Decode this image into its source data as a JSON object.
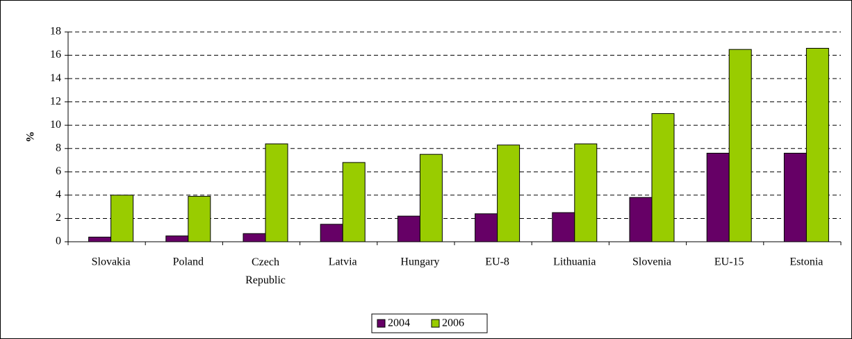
{
  "chart_data": {
    "type": "bar",
    "y_label": "%",
    "categories": [
      "Slovakia",
      "Poland",
      "Czech Republic",
      "Latvia",
      "Hungary",
      "EU-8",
      "Lithuania",
      "Slovenia",
      "EU-15",
      "Estonia"
    ],
    "series": [
      {
        "name": "2004",
        "color": "#660066",
        "values": [
          0.4,
          0.5,
          0.7,
          1.5,
          2.2,
          2.4,
          2.5,
          3.8,
          7.6,
          7.6
        ]
      },
      {
        "name": "2006",
        "color": "#99cc00",
        "values": [
          4.0,
          3.9,
          8.4,
          6.8,
          7.5,
          8.3,
          8.4,
          11.0,
          16.5,
          16.6
        ]
      }
    ],
    "ylim": [
      0,
      18
    ],
    "yticks": [
      0,
      2,
      4,
      6,
      8,
      10,
      12,
      14,
      16,
      18
    ],
    "grid": true,
    "legend": "bottom"
  }
}
